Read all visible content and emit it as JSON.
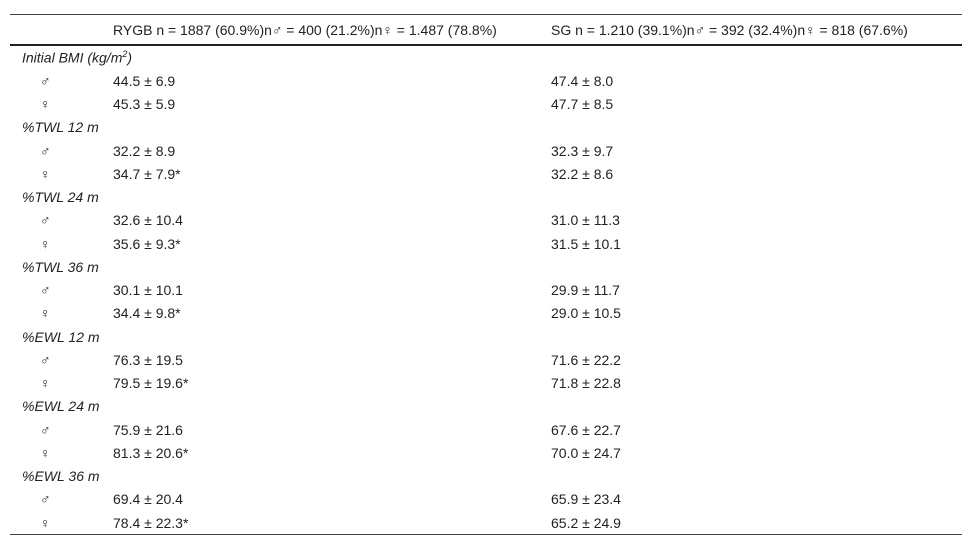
{
  "header": {
    "col0": "",
    "col1": "RYGB n = 1887 (60.9%)n♂ = 400 (21.2%)n♀ = 1.487 (78.8%)",
    "col2": "SG n = 1.210 (39.1%)n♂ = 392 (32.4%)n♀ = 818 (67.6%)"
  },
  "sections": [
    {
      "label": "Initial BMI (kg/m",
      "sup": "2",
      "label_end": ")",
      "rows": [
        {
          "sex": "♂",
          "rygb": "44.5 ± 6.9",
          "sg": "47.4 ± 8.0"
        },
        {
          "sex": "♀",
          "rygb": "45.3 ± 5.9",
          "sg": "47.7 ± 8.5"
        }
      ]
    },
    {
      "label": "%TWL 12 m",
      "rows": [
        {
          "sex": "♂",
          "rygb": "32.2 ± 8.9",
          "sg": "32.3 ± 9.7"
        },
        {
          "sex": "♀",
          "rygb": "34.7 ± 7.9*",
          "sg": "32.2 ± 8.6"
        }
      ]
    },
    {
      "label": "%TWL 24 m",
      "rows": [
        {
          "sex": "♂",
          "rygb": "32.6 ± 10.4",
          "sg": "31.0 ± 11.3"
        },
        {
          "sex": "♀",
          "rygb": "35.6 ± 9.3*",
          "sg": "31.5 ± 10.1"
        }
      ]
    },
    {
      "label": "%TWL 36 m",
      "rows": [
        {
          "sex": "♂",
          "rygb": "30.1 ± 10.1",
          "sg": "29.9 ± 11.7"
        },
        {
          "sex": "♀",
          "rygb": "34.4 ± 9.8*",
          "sg": "29.0 ± 10.5"
        }
      ]
    },
    {
      "label": "%EWL 12 m",
      "rows": [
        {
          "sex": "♂",
          "rygb": "76.3 ± 19.5",
          "sg": "71.6 ± 22.2"
        },
        {
          "sex": "♀",
          "rygb": "79.5 ± 19.6*",
          "sg": "71.8 ± 22.8"
        }
      ]
    },
    {
      "label": "%EWL 24 m",
      "rows": [
        {
          "sex": "♂",
          "rygb": "75.9 ± 21.6",
          "sg": "67.6 ± 22.7"
        },
        {
          "sex": "♀",
          "rygb": "81.3 ± 20.6*",
          "sg": "70.0 ± 24.7"
        }
      ]
    },
    {
      "label": "%EWL 36 m",
      "rows": [
        {
          "sex": "♂",
          "rygb": "69.4 ± 20.4",
          "sg": "65.9 ± 23.4"
        },
        {
          "sex": "♀",
          "rygb": "78.4 ± 22.3*",
          "sg": "65.2 ± 24.9"
        }
      ]
    }
  ]
}
